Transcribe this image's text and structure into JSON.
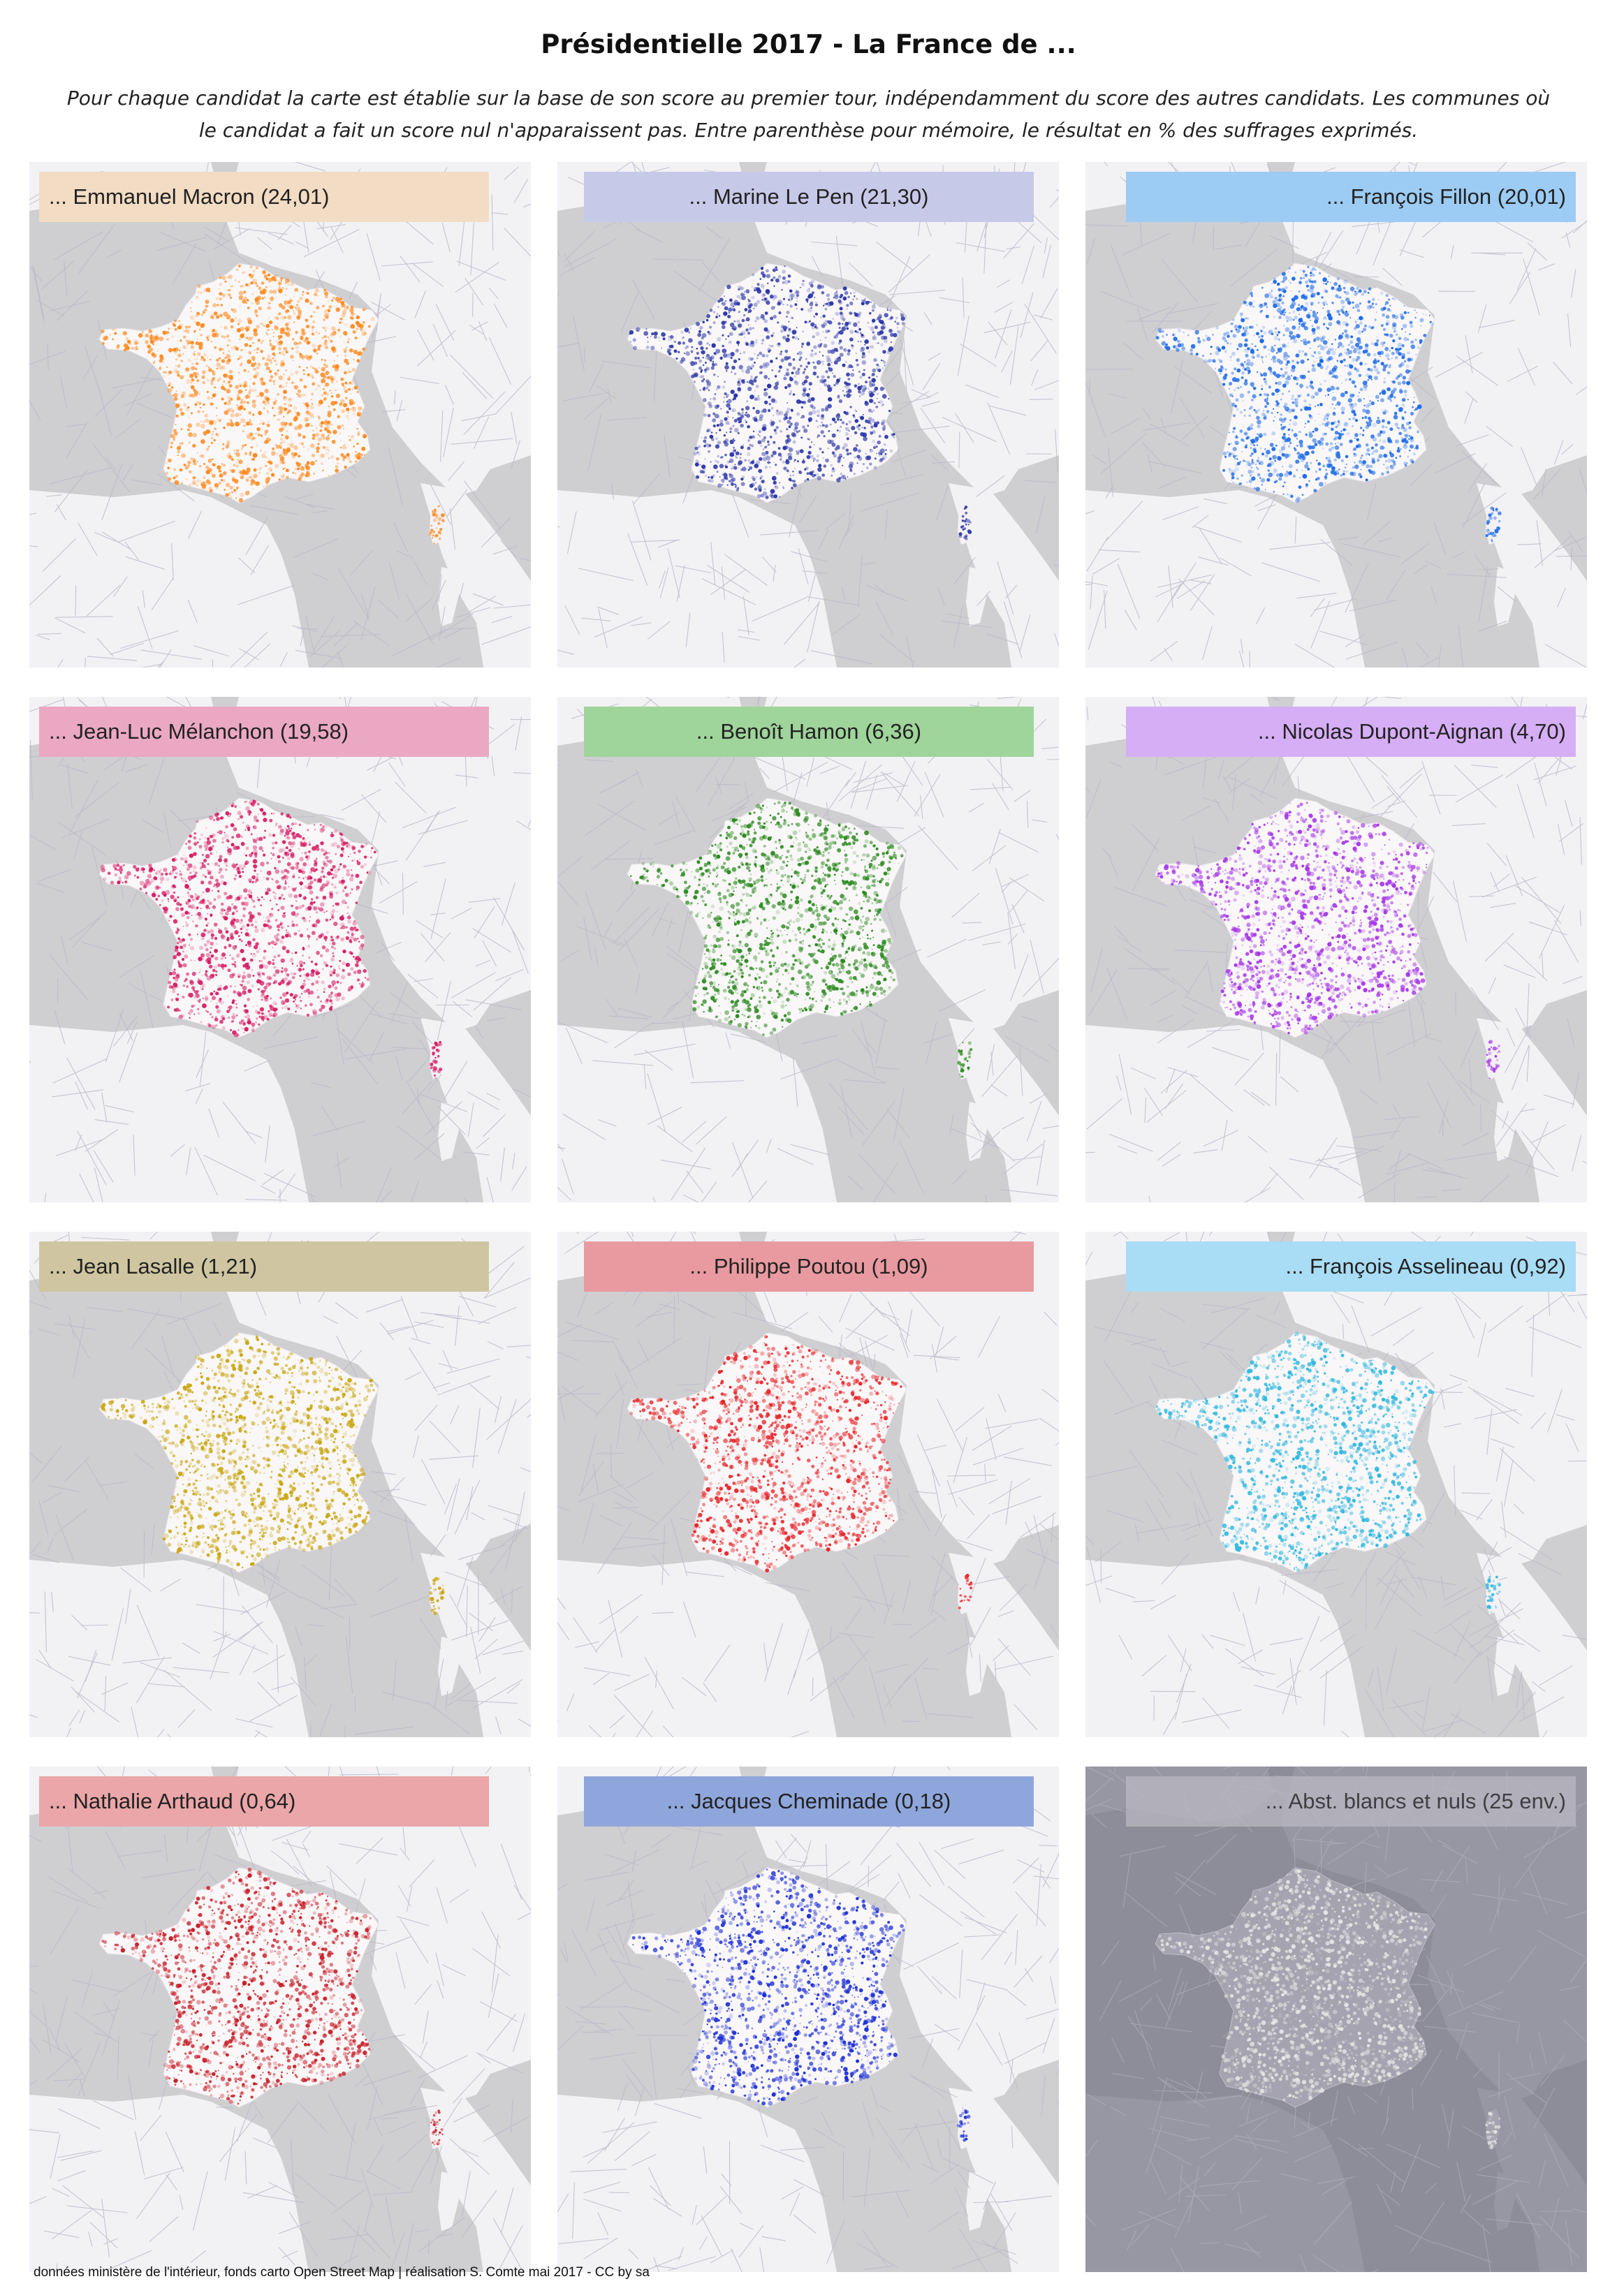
{
  "title": "Présidentielle 2017 - La France de ...",
  "subtitle_line1": "Pour chaque candidat la carte est établie sur la base de son score au premier tour, indépendamment du score des autres candidats. Les communes où",
  "subtitle_line2": "le candidat a fait un score nul n'apparaissent pas. Entre parenthèse pour mémoire, le résultat en % des suffrages exprimés.",
  "panels": [
    {
      "label": "... Emmanuel Macron (24,01)",
      "color": "#ff8a1e",
      "label_bg": "#f3dcc4",
      "align": "left"
    },
    {
      "label": "... Marine Le Pen (21,30)",
      "color": "#2a36a8",
      "label_bg": "#c7c9e8",
      "align": "center"
    },
    {
      "label": "... François Fillon (20,01)",
      "color": "#1b6ae8",
      "label_bg": "#9ccbf3",
      "align": "right"
    },
    {
      "label": "... Jean-Luc Mélanchon (19,58)",
      "color": "#d61a62",
      "label_bg": "#eaa8c2",
      "align": "left"
    },
    {
      "label": "... Benoît Hamon (6,36)",
      "color": "#2a8a1e",
      "label_bg": "#9fd49a",
      "align": "center"
    },
    {
      "label": "... Nicolas Dupont-Aignan (4,70)",
      "color": "#a637e8",
      "label_bg": "#d6aef5",
      "align": "right"
    },
    {
      "label": "... Jean Lasalle (1,21)",
      "color": "#c9a712",
      "label_bg": "#cfc6a1",
      "align": "left"
    },
    {
      "label": "... Philippe Poutou (1,09)",
      "color": "#e8262a",
      "label_bg": "#e89aa0",
      "align": "center"
    },
    {
      "label": "... François Asselineau (0,92)",
      "color": "#2fb8e0",
      "label_bg": "#a9dcf5",
      "align": "right"
    },
    {
      "label": "... Nathalie Arthaud (0,64)",
      "color": "#c8202a",
      "label_bg": "#eaa6a8",
      "align": "left"
    },
    {
      "label": "... Jacques Cheminade (0,18)",
      "color": "#1c2fd6",
      "label_bg": "#8fa6dc",
      "align": "center"
    },
    {
      "label": "... Abst. blancs et nuls (25 env.)",
      "color": "#e6e6e6",
      "label_bg": "#b9b8c2",
      "align": "right"
    }
  ],
  "credits": "données ministère de l'intérieur, fonds carto Open Street Map | réalisation S. Comte mai 2017 - CC by sa"
}
